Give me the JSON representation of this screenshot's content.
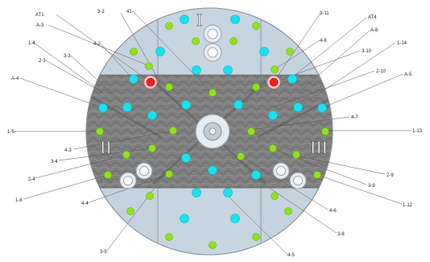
{
  "colors": {
    "disk_light": "#c5d3de",
    "disk_outline": "#8a9198",
    "band_dark": "#7a7a7a",
    "cyan": "#19e1ee",
    "green": "#8fe21a",
    "red": "#ff1a1a",
    "hub_fill": "#e6ecf1",
    "hub_ring": "#9aa2aa"
  },
  "zones": [
    {
      "id": "zone-1",
      "label": "I"
    },
    {
      "id": "zone-2",
      "label": "II"
    },
    {
      "id": "zone-3",
      "label": "III"
    }
  ],
  "labels": {
    "at1": "AT1",
    "a3": "A-3",
    "s4_2": "4-2",
    "s3_2": "3-2",
    "s41": "41-",
    "s1_4": "1-4",
    "s2_3": "2-3",
    "s3_3": "3-3",
    "a4": "A-4",
    "s1_5": "1-5",
    "s4_3": "4-3",
    "s3_4": "3-4",
    "s2_4": "2-4",
    "s1_6": "1-6",
    "s4_4": "4-4",
    "s3_5": "3-5",
    "s3_11": "3-11",
    "at4": "AT4",
    "s4_8": "4-8",
    "a6": "A-6",
    "s1_14": "1-14",
    "s3_10": "3-10",
    "s2_10": "2-10",
    "a5": "A-5",
    "s4_7": "4-7",
    "s1_13": "1-13",
    "s2_9": "2-9",
    "s3_9": "3-9",
    "s1_12": "1-12",
    "s4_6": "4-6",
    "s3_8": "3-8",
    "s4_5": "4-5"
  }
}
